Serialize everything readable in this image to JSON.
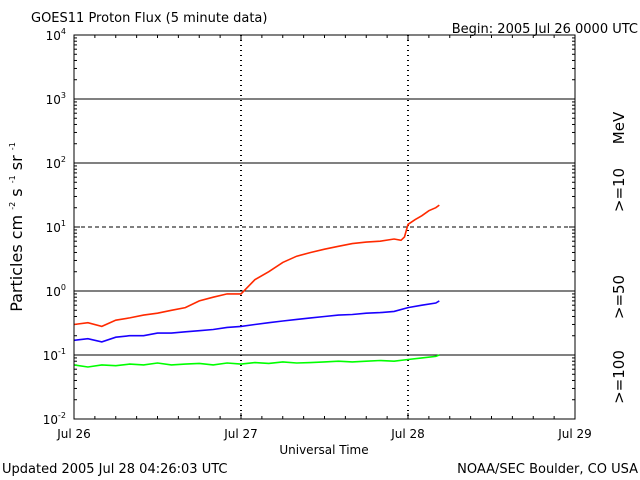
{
  "header": {
    "title": "GOES11 Proton Flux (5 minute data)",
    "begin": "Begin: 2005 Jul 26 0000 UTC"
  },
  "footer": {
    "updated": "Updated 2005 Jul 28 04:26:03 UTC",
    "source": "NOAA/SEC Boulder, CO USA"
  },
  "chart_data": {
    "type": "line",
    "title": "GOES11 Proton Flux (5 minute data)",
    "xlabel": "Universal Time",
    "ylabel": "Particles cm-2s-1sr-1",
    "ylabel_parts": [
      "Particles cm",
      "-2",
      "s",
      "-1",
      "sr",
      "-1"
    ],
    "y_scale": "log",
    "ylim": [
      0.01,
      10000
    ],
    "y_ticks": [
      {
        "base": "10",
        "exp": "4"
      },
      {
        "base": "10",
        "exp": "3"
      },
      {
        "base": "10",
        "exp": "2"
      },
      {
        "base": "10",
        "exp": "1"
      },
      {
        "base": "10",
        "exp": "0"
      },
      {
        "base": "10",
        "exp": "-1"
      },
      {
        "base": "10",
        "exp": "-2"
      }
    ],
    "x_unit": "hours since 2005 Jul 26 0000 UTC",
    "xlim": [
      0,
      72
    ],
    "x_ticks": [
      {
        "label": "Jul 26",
        "x": 0
      },
      {
        "label": "Jul 27",
        "x": 24
      },
      {
        "label": "Jul 28",
        "x": 48
      },
      {
        "label": "Jul 29",
        "x": 72
      }
    ],
    "grid": {
      "solid_decades": [
        1000,
        100,
        1,
        0.1
      ],
      "dashed_decades": [
        10
      ]
    },
    "legend_unit": "MeV",
    "series": [
      {
        "name": ">=10",
        "color": "#ff2a00",
        "x": [
          0,
          2,
          4,
          6,
          8,
          10,
          12,
          14,
          16,
          18,
          20,
          22,
          24,
          26,
          28,
          30,
          32,
          34,
          36,
          38,
          40,
          42,
          44,
          46,
          47,
          47.5,
          48,
          49,
          50,
          51,
          52,
          52.5
        ],
        "y": [
          0.3,
          0.32,
          0.28,
          0.35,
          0.38,
          0.42,
          0.45,
          0.5,
          0.55,
          0.7,
          0.8,
          0.9,
          0.9,
          1.5,
          2.0,
          2.8,
          3.5,
          4.0,
          4.5,
          5.0,
          5.5,
          5.8,
          6.0,
          6.5,
          6.2,
          7.0,
          11,
          13,
          15,
          18,
          20,
          22
        ]
      },
      {
        "name": ">=50",
        "color": "#1a00ff",
        "x": [
          0,
          2,
          4,
          6,
          8,
          10,
          12,
          14,
          16,
          18,
          20,
          22,
          24,
          26,
          28,
          30,
          32,
          34,
          36,
          38,
          40,
          42,
          44,
          46,
          48,
          50,
          52,
          52.5
        ],
        "y": [
          0.17,
          0.18,
          0.16,
          0.19,
          0.2,
          0.2,
          0.22,
          0.22,
          0.23,
          0.24,
          0.25,
          0.27,
          0.28,
          0.3,
          0.32,
          0.34,
          0.36,
          0.38,
          0.4,
          0.42,
          0.43,
          0.45,
          0.46,
          0.48,
          0.55,
          0.6,
          0.65,
          0.7
        ]
      },
      {
        "name": ">=100",
        "color": "#00ff00",
        "x": [
          0,
          2,
          4,
          6,
          8,
          10,
          12,
          14,
          16,
          18,
          20,
          22,
          24,
          26,
          28,
          30,
          32,
          34,
          36,
          38,
          40,
          42,
          44,
          46,
          48,
          50,
          52,
          52.5
        ],
        "y": [
          0.07,
          0.065,
          0.07,
          0.068,
          0.072,
          0.07,
          0.075,
          0.07,
          0.072,
          0.074,
          0.07,
          0.075,
          0.072,
          0.076,
          0.074,
          0.078,
          0.075,
          0.076,
          0.078,
          0.08,
          0.078,
          0.08,
          0.082,
          0.08,
          0.085,
          0.09,
          0.095,
          0.1
        ]
      }
    ]
  }
}
